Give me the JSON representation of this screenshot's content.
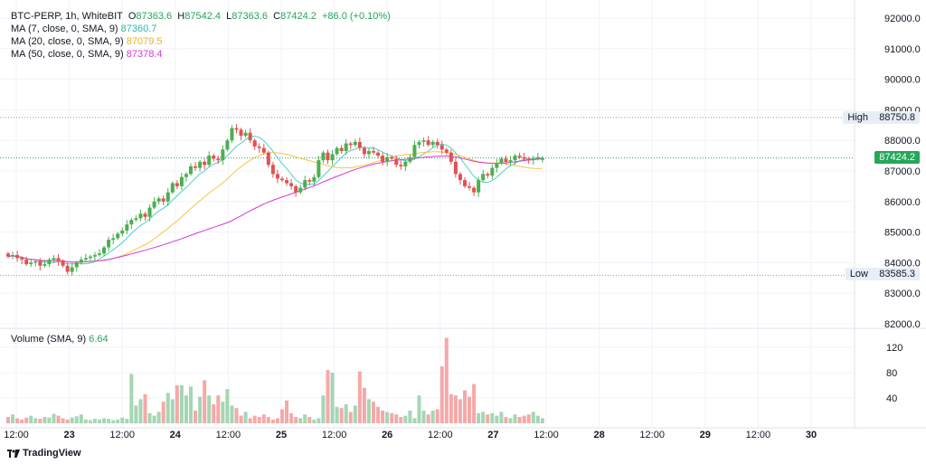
{
  "legend": {
    "symbol": "BTC-PERP, 1h, WhiteBIT",
    "o_label": "O",
    "o_value": "87363.6",
    "h_label": "H",
    "h_value": "87542.4",
    "l_label": "L",
    "l_value": "87363.6",
    "c_label": "C",
    "c_value": "87424.2",
    "change": "+86.0 (+0.10%)",
    "ma7_label": "MA (7, close, 0, SMA, 9)",
    "ma7_value": "87360.7",
    "ma20_label": "MA (20, close, 0, SMA, 9)",
    "ma20_value": "87079.5",
    "ma50_label": "MA (50, close, 0, SMA, 9)",
    "ma50_value": "87378.4",
    "volume_label": "Volume (SMA, 9)",
    "volume_value": "6.64"
  },
  "markers": {
    "high_label": "High",
    "high_value": "88750.8",
    "low_label": "Low",
    "low_value": "83585.3",
    "last_price": "87424.2"
  },
  "colors": {
    "up": "#26a69a",
    "down": "#ef5350",
    "up_candle": "#4caf50",
    "down_candle": "#e05252",
    "ma7": "#4dd0c8",
    "ma20": "#f5c542",
    "ma50": "#d63ad6",
    "vol_up": "#a5d6b4",
    "vol_down": "#f4a9a8"
  },
  "brand": "TradingView",
  "chart_data": {
    "type": "candlestick",
    "price_axis_ticks": [
      82000,
      83000,
      84000,
      85000,
      86000,
      87000,
      88000,
      89000,
      90000,
      91000,
      92000
    ],
    "price_axis_labels": [
      "82000.0",
      "83000.0",
      "84000.0",
      "85000.0",
      "86000.0",
      "87000.0",
      "88000.0",
      "89000.0",
      "90000.0",
      "91000.0",
      "92000.0"
    ],
    "volume_axis_ticks": [
      40,
      80,
      120
    ],
    "volume_axis_labels": [
      "40",
      "80",
      "120"
    ],
    "time_axis_labels": [
      "12:00",
      "23",
      "12:00",
      "24",
      "12:00",
      "25",
      "12:00",
      "26",
      "12:00",
      "27",
      "12:00",
      "28",
      "12:00",
      "29",
      "12:00",
      "30"
    ],
    "price_range": [
      82000,
      92000
    ],
    "volume_range": [
      0,
      140
    ],
    "high": 88750.8,
    "low": 83585.3,
    "last": 87424.2,
    "closes": [
      84200,
      84250,
      84150,
      84100,
      83950,
      84000,
      84050,
      83900,
      83950,
      84100,
      84150,
      84050,
      83900,
      83700,
      83850,
      84000,
      84100,
      84150,
      84200,
      84250,
      84300,
      84500,
      84750,
      84800,
      84950,
      85050,
      85250,
      85400,
      85450,
      85600,
      85500,
      85800,
      86000,
      86100,
      86000,
      86300,
      86600,
      86500,
      86800,
      86900,
      87150,
      87100,
      87300,
      87200,
      87500,
      87400,
      87350,
      87700,
      88000,
      88400,
      88350,
      88150,
      88250,
      88000,
      87800,
      87750,
      87600,
      87200,
      86900,
      86750,
      86700,
      86600,
      86500,
      86300,
      86450,
      86700,
      86650,
      86800,
      87350,
      87600,
      87350,
      87550,
      87750,
      87650,
      87900,
      87850,
      87950,
      87750,
      87550,
      87650,
      87600,
      87500,
      87300,
      87450,
      87400,
      87200,
      87150,
      87300,
      87450,
      87850,
      87950,
      88000,
      87850,
      87950,
      87850,
      87700,
      87600,
      87300,
      86900,
      86700,
      86500,
      86450,
      86300,
      86700,
      86900,
      86850,
      87100,
      87250,
      87400,
      87300,
      87350,
      87500,
      87450,
      87400,
      87350,
      87400,
      87450,
      87424
    ],
    "opens": [
      84300,
      84200,
      84250,
      84150,
      84100,
      83950,
      84000,
      84050,
      83900,
      83950,
      84100,
      84150,
      84050,
      83900,
      83700,
      83850,
      84000,
      84100,
      84150,
      84200,
      84250,
      84300,
      84500,
      84750,
      84800,
      84950,
      85050,
      85250,
      85400,
      85450,
      85600,
      85500,
      85800,
      86000,
      86100,
      86000,
      86300,
      86600,
      86500,
      86800,
      86900,
      87150,
      87100,
      87300,
      87200,
      87500,
      87400,
      87350,
      87700,
      88000,
      88400,
      88350,
      88150,
      88250,
      88000,
      87800,
      87750,
      87600,
      87200,
      86900,
      86750,
      86700,
      86600,
      86500,
      86300,
      86450,
      86700,
      86650,
      86800,
      87350,
      87600,
      87350,
      87550,
      87750,
      87650,
      87900,
      87850,
      87950,
      87750,
      87550,
      87650,
      87600,
      87500,
      87300,
      87450,
      87400,
      87200,
      87150,
      87300,
      87450,
      87850,
      87950,
      88000,
      87850,
      87950,
      87850,
      87700,
      87600,
      87300,
      86900,
      86700,
      86500,
      86450,
      86300,
      86700,
      86900,
      86850,
      87100,
      87250,
      87400,
      87300,
      87350,
      87500,
      87450,
      87400,
      87350,
      87400,
      87364
    ],
    "volumes": [
      10,
      14,
      8,
      6,
      9,
      12,
      8,
      7,
      10,
      9,
      15,
      12,
      8,
      6,
      9,
      11,
      14,
      6,
      5,
      7,
      6,
      8,
      7,
      5,
      6,
      9,
      7,
      78,
      28,
      38,
      46,
      16,
      12,
      18,
      34,
      48,
      38,
      60,
      60,
      44,
      58,
      20,
      42,
      68,
      44,
      30,
      44,
      34,
      54,
      28,
      24,
      12,
      18,
      8,
      12,
      10,
      14,
      10,
      6,
      8,
      22,
      36,
      16,
      10,
      8,
      14,
      10,
      6,
      8,
      44,
      84,
      80,
      26,
      24,
      30,
      18,
      28,
      82,
      56,
      38,
      34,
      26,
      20,
      18,
      16,
      14,
      10,
      12,
      20,
      8,
      44,
      20,
      14,
      20,
      22,
      90,
      135,
      46,
      44,
      38,
      52,
      42,
      62,
      16,
      18,
      14,
      16,
      12,
      18,
      10,
      8,
      14,
      10,
      12,
      14,
      18,
      12,
      8
    ]
  }
}
